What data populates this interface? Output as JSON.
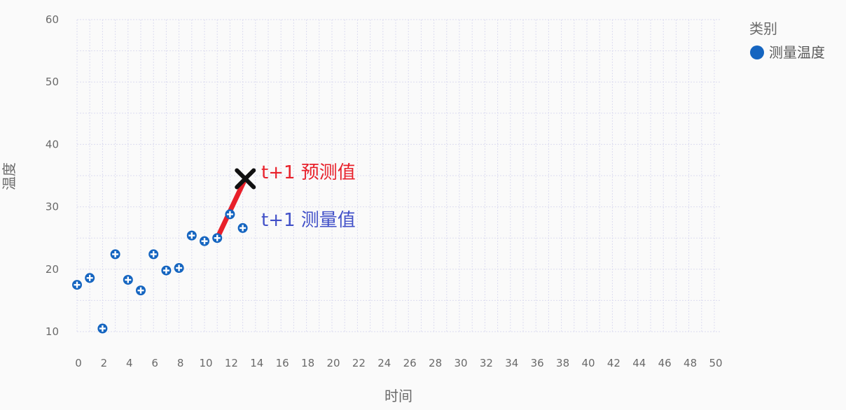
{
  "chart_data": {
    "type": "scatter",
    "xlabel": "时间",
    "ylabel": "温度",
    "xlim": [
      0,
      50
    ],
    "ylim": [
      10,
      60
    ],
    "xticks": [
      0,
      2,
      4,
      6,
      8,
      10,
      12,
      14,
      16,
      18,
      20,
      22,
      24,
      26,
      28,
      30,
      32,
      34,
      36,
      38,
      40,
      42,
      44,
      46,
      48,
      50
    ],
    "yticks": [
      10,
      20,
      30,
      40,
      50,
      60
    ],
    "grid": true,
    "legend": {
      "title": "类别",
      "position": "top-right"
    },
    "series": [
      {
        "name": "测量温度",
        "color": "#1565c0",
        "marker": "plus-circle",
        "x": [
          0,
          1,
          2,
          3,
          4,
          5,
          6,
          7,
          8,
          9,
          10,
          11,
          12,
          13
        ],
        "y": [
          17.5,
          18.6,
          10.5,
          22.4,
          18.3,
          16.6,
          22.4,
          19.8,
          20.2,
          25.4,
          24.5,
          25.0,
          28.8,
          26.6
        ]
      }
    ],
    "prediction": {
      "from": [
        11,
        25.0
      ],
      "to": [
        13.2,
        34.5
      ],
      "line_color": "#e8202a",
      "marker_color": "#111111",
      "marker": "x-icon"
    },
    "annotations": [
      {
        "text": "t+1 预测值",
        "color": "#e8202a"
      },
      {
        "text": "t+1 测量值",
        "color": "#4150c8"
      }
    ]
  }
}
